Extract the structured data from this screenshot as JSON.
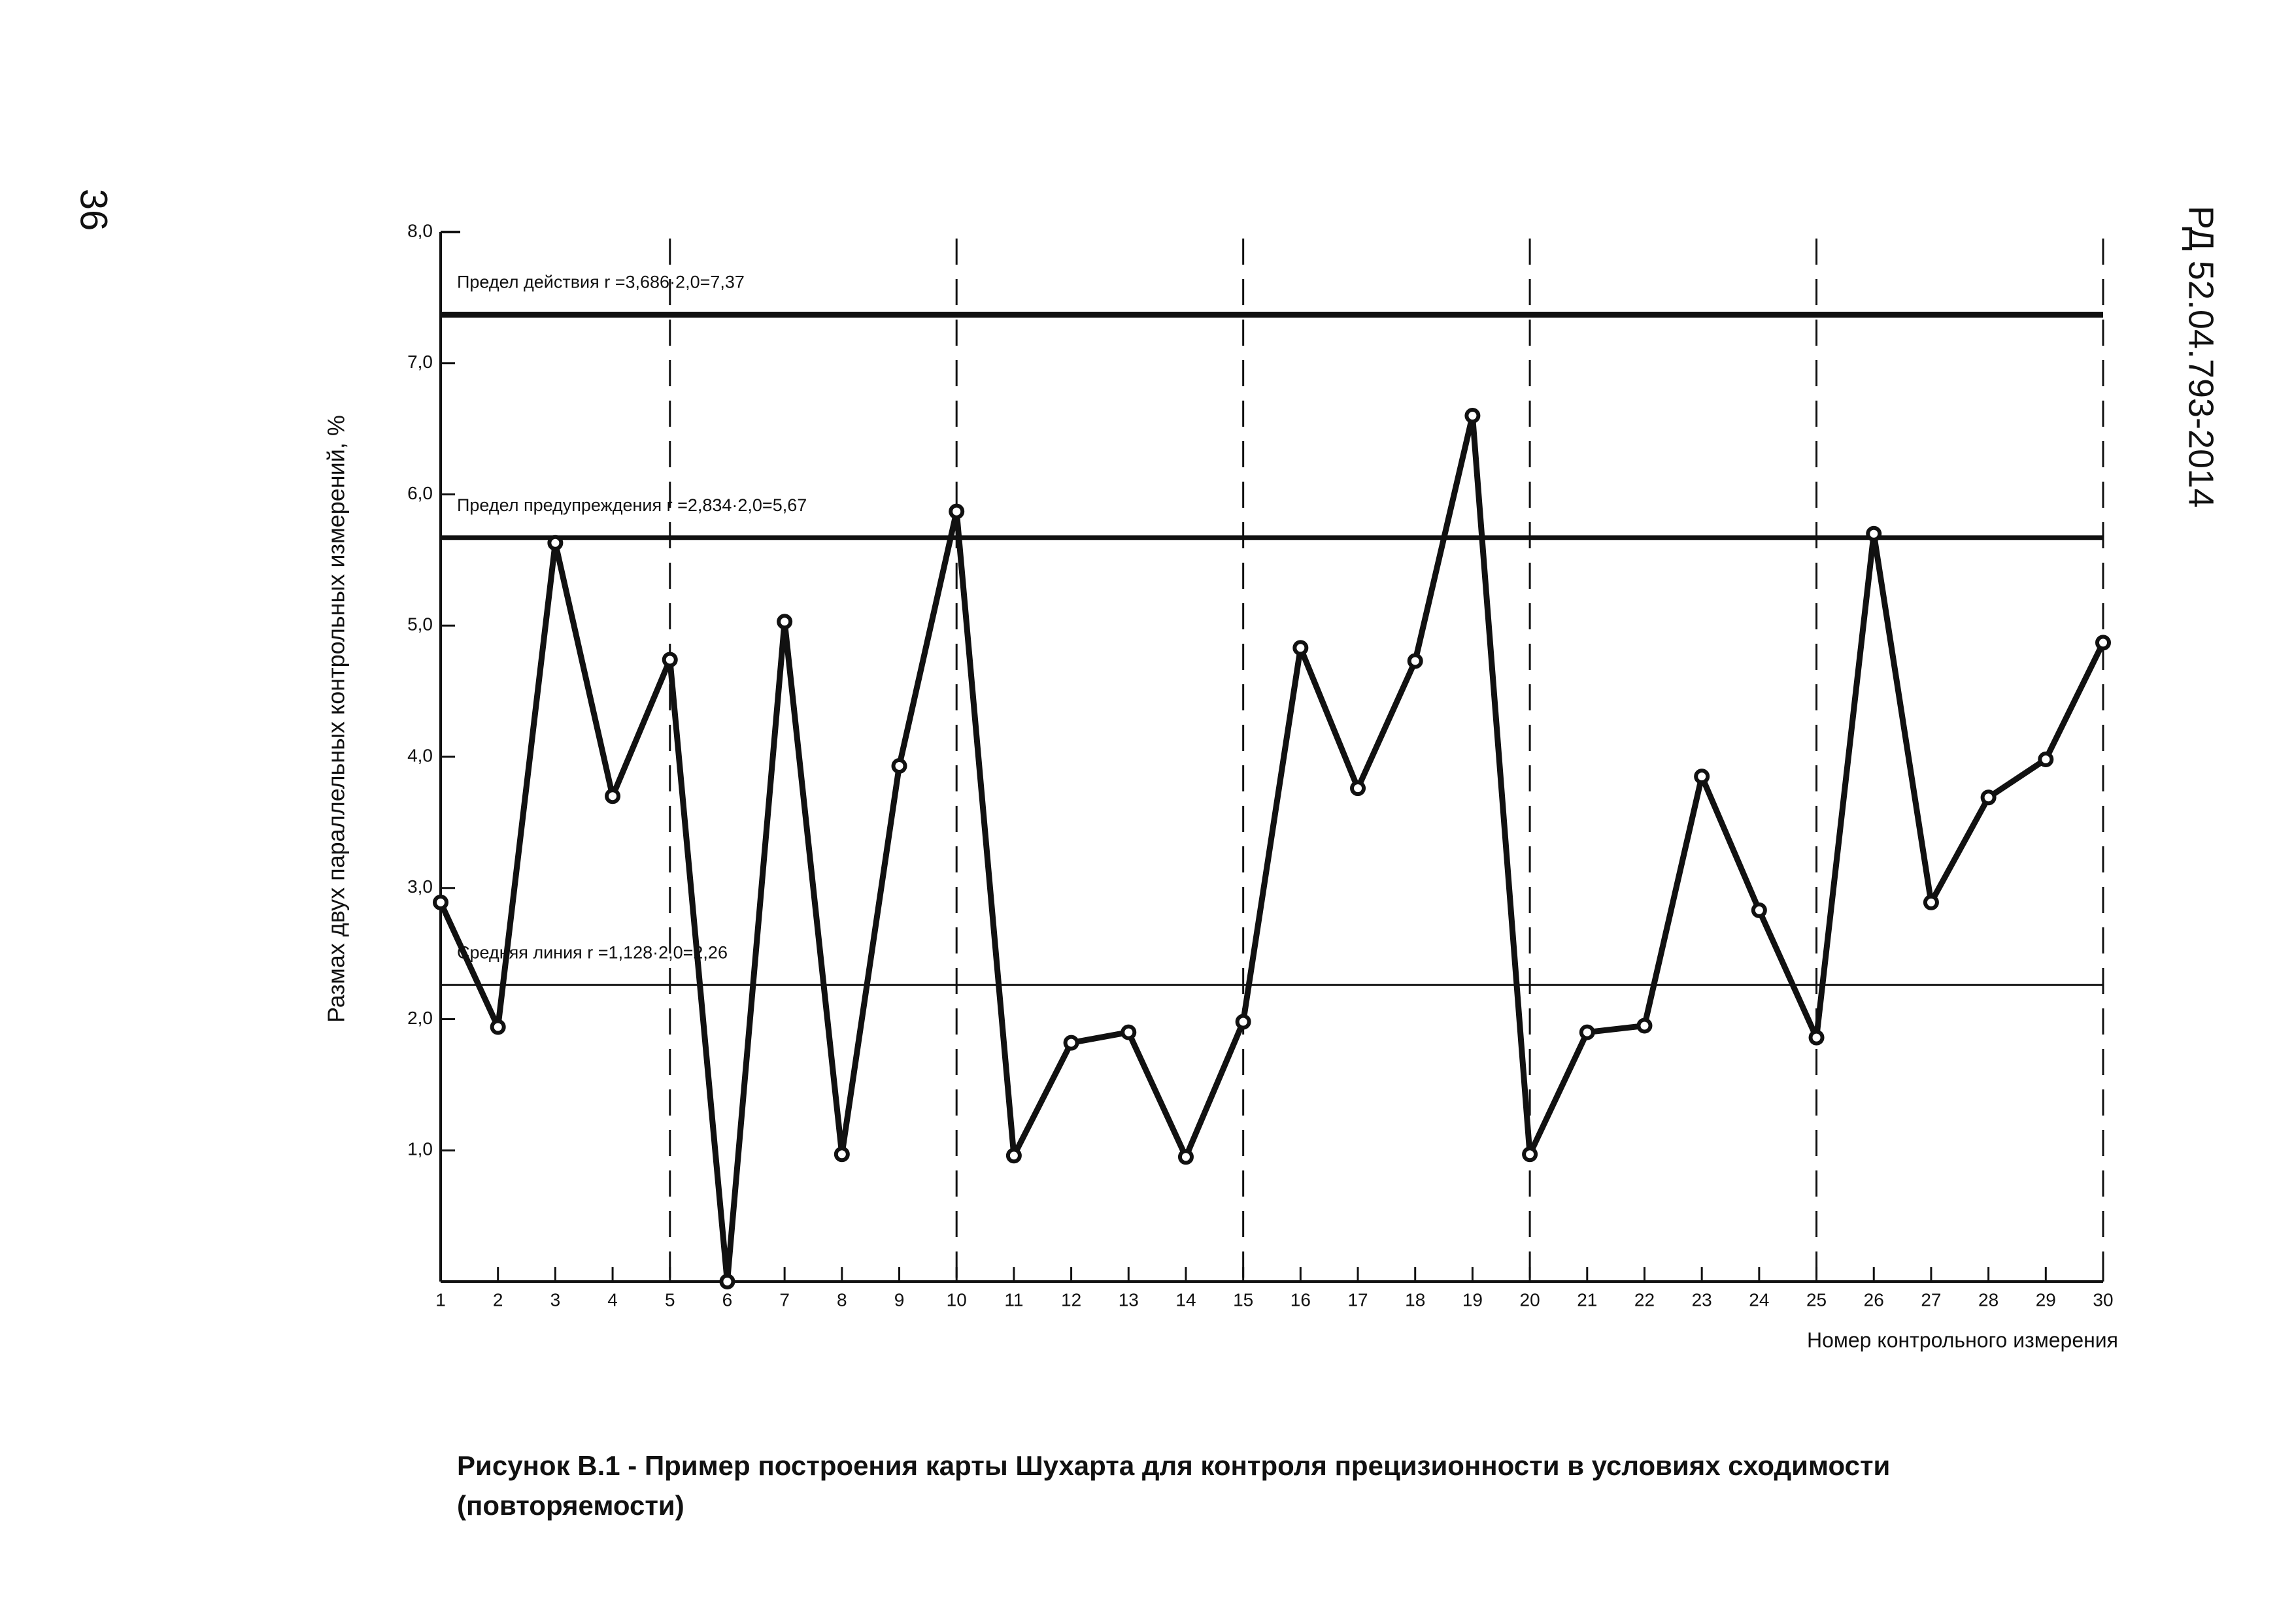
{
  "page_number": "36",
  "document_code": "РД 52.04.793-2014",
  "caption": [
    "Рисунок В.1 - Пример построения карты Шухарта для контроля прецизионности в условиях сходимости",
    "(повторяемости)"
  ],
  "chart_data": {
    "type": "line",
    "x_label": "Номер контрольного измерения",
    "y_label": "Размах двух параллельных контрольных измерений, %",
    "x": [
      1,
      2,
      3,
      4,
      5,
      6,
      7,
      8,
      9,
      10,
      11,
      12,
      13,
      14,
      15,
      16,
      17,
      18,
      19,
      20,
      21,
      22,
      23,
      24,
      25,
      26,
      27,
      28,
      29,
      30
    ],
    "series": [
      {
        "color": "#111111",
        "values": [
          2.89,
          1.94,
          5.63,
          3.7,
          4.74,
          0.0,
          5.03,
          0.97,
          3.93,
          5.87,
          0.96,
          1.82,
          1.9,
          0.95,
          1.98,
          4.83,
          3.76,
          4.73,
          6.6,
          0.97,
          1.9,
          1.95,
          3.85,
          2.83,
          1.86,
          5.7,
          2.89,
          3.69,
          3.98,
          4.87
        ]
      }
    ],
    "xlim": [
      1,
      30
    ],
    "xticks": [
      1,
      2,
      3,
      4,
      5,
      6,
      7,
      8,
      9,
      10,
      11,
      12,
      13,
      14,
      15,
      16,
      17,
      18,
      19,
      20,
      21,
      22,
      23,
      24,
      25,
      26,
      27,
      28,
      29,
      30
    ],
    "ylim": [
      0,
      8
    ],
    "yticks": [
      {
        "value": 1,
        "label": "1,0"
      },
      {
        "value": 2,
        "label": "2,0"
      },
      {
        "value": 3,
        "label": "3,0"
      },
      {
        "value": 4,
        "label": "4,0"
      },
      {
        "value": 5,
        "label": "5,0"
      },
      {
        "value": 6,
        "label": "6,0"
      },
      {
        "value": 7,
        "label": "7,0"
      },
      {
        "value": 8,
        "label": "8,0"
      }
    ],
    "dashed_vlines": [
      5,
      10,
      15,
      20,
      25,
      30
    ],
    "limit_lines": [
      {
        "label": "Предел действия r =3,686·2,0=7,37",
        "value": 7.37
      },
      {
        "label": "Предел предупреждения r =2,834·2,0=5,67",
        "value": 5.67
      },
      {
        "label": "Средняя линия r =1,128·2,0=2,26",
        "value": 2.26
      }
    ]
  }
}
